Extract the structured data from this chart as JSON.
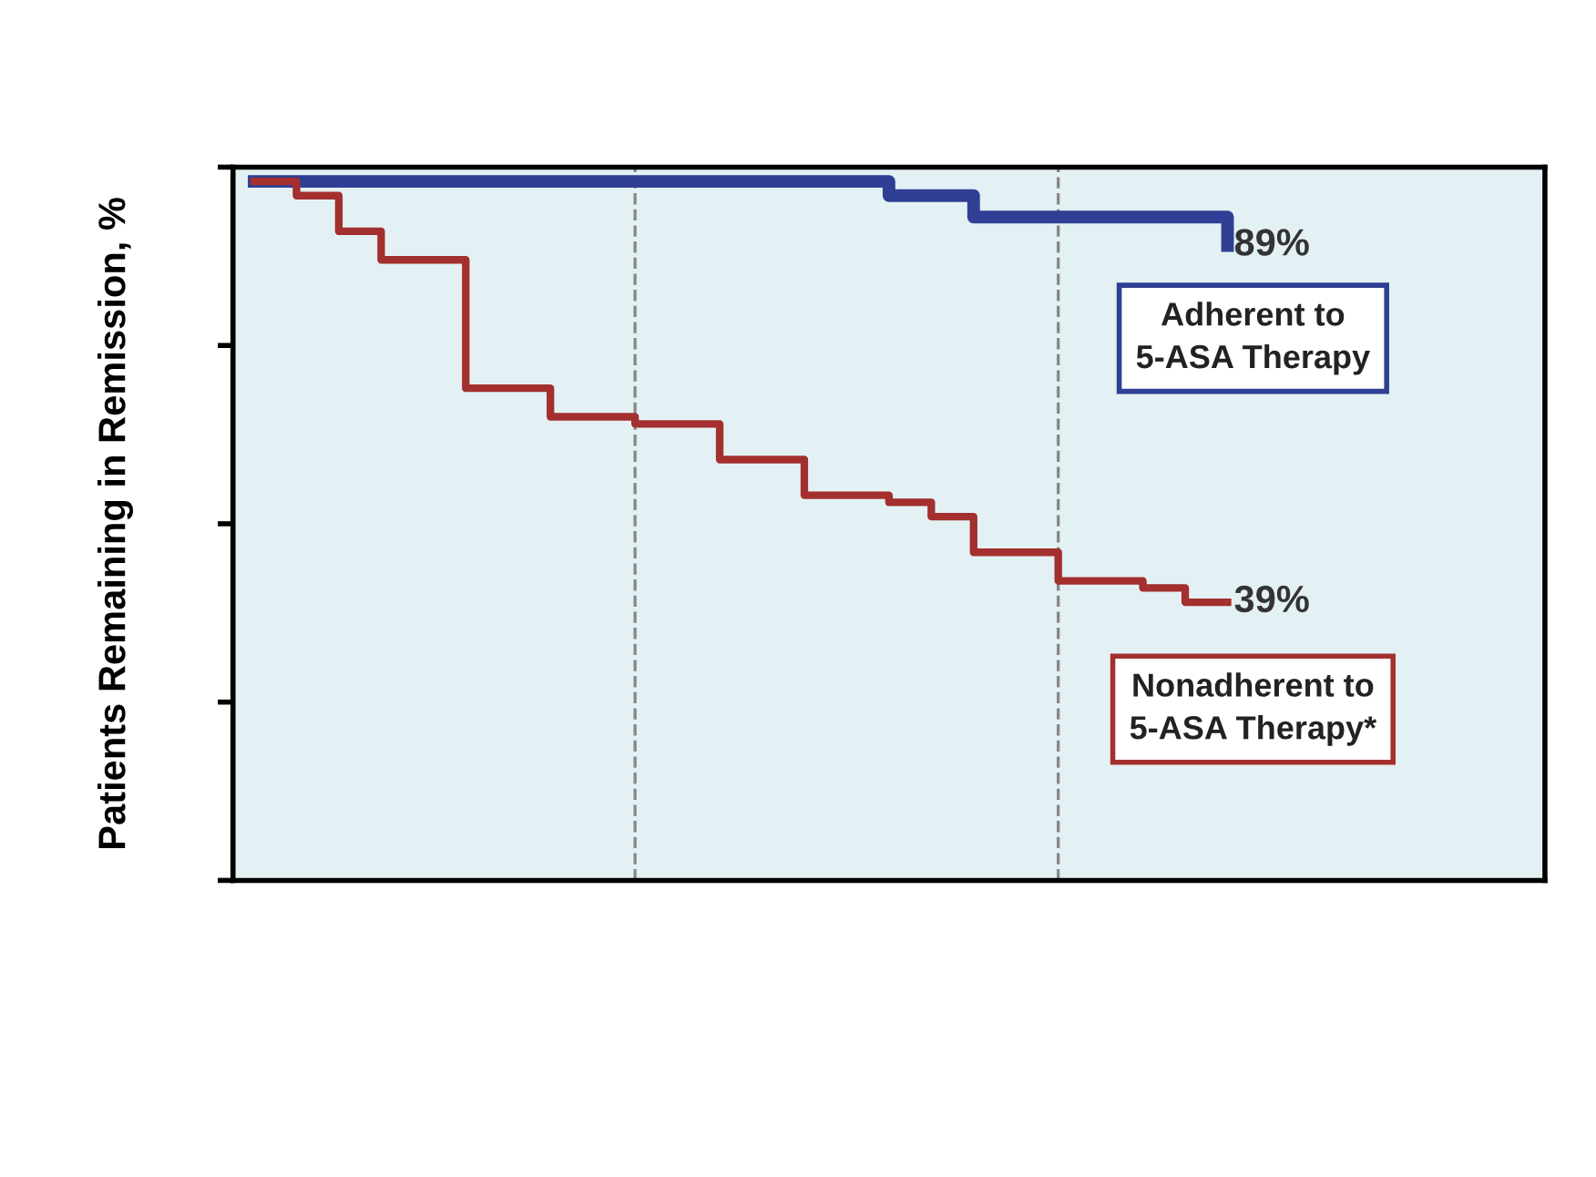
{
  "chart_data": {
    "type": "step",
    "ylabel": "Patients Remaining in Remission, %",
    "ylim": [
      0,
      100
    ],
    "yticks": [
      {
        "value": 0,
        "label": null
      },
      {
        "value": 25,
        "label": null
      },
      {
        "value": 50,
        "label": null
      },
      {
        "value": 75,
        "label": null
      },
      {
        "value": 100,
        "label": null
      }
    ],
    "categories": [
      null,
      null,
      null,
      null,
      null,
      null,
      null,
      null,
      null,
      null,
      null,
      null,
      null,
      null,
      null,
      null,
      null,
      null,
      null,
      null,
      null,
      null,
      null,
      null,
      null,
      null,
      null,
      null,
      null,
      null,
      null
    ],
    "series": [
      {
        "name": "Adherent to\n5-ASA Therapy",
        "color": "#2e3f94",
        "values": [
          98,
          98,
          98,
          98,
          98,
          98,
          98,
          98,
          98,
          98,
          98,
          98,
          98,
          98,
          98,
          96,
          96,
          93,
          93,
          93,
          93,
          93,
          93,
          89,
          null,
          null,
          null,
          null,
          null,
          null,
          null
        ],
        "value_labels": [
          null,
          null,
          null,
          null,
          null,
          null,
          null,
          null,
          null,
          null,
          null,
          null,
          null,
          null,
          null,
          null,
          null,
          null,
          null,
          null,
          null,
          null,
          null,
          "89%",
          null,
          null,
          null,
          null,
          null,
          null,
          null
        ]
      },
      {
        "name": "Nonadherent to\n5-ASA Therapy*",
        "color": "#a3302e",
        "values": [
          98,
          96,
          91,
          87,
          87,
          69,
          69,
          65,
          65,
          64,
          64,
          59,
          59,
          54,
          54,
          53,
          51,
          46,
          46,
          42,
          42,
          41,
          39,
          39,
          null,
          null,
          null,
          null,
          null,
          null,
          null
        ],
        "value_labels": [
          null,
          null,
          null,
          null,
          null,
          null,
          null,
          null,
          null,
          null,
          null,
          null,
          null,
          null,
          null,
          null,
          null,
          null,
          null,
          null,
          null,
          null,
          null,
          "39%",
          null,
          null,
          null,
          null,
          null,
          null,
          null
        ]
      }
    ],
    "grid": false
  }
}
